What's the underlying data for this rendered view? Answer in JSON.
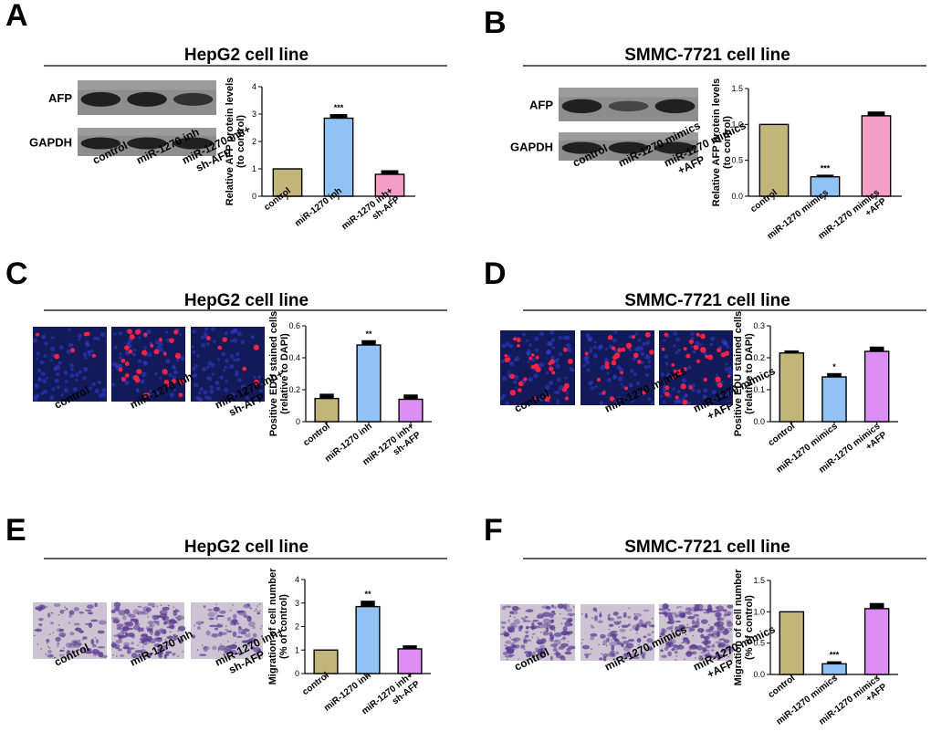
{
  "colors": {
    "olive": "#c2b57a",
    "blue": "#90c3f3",
    "pink": "#f59ec5",
    "violet": "#dd8ef4",
    "dapi": "#131a5a",
    "edu_red": "#ff2244",
    "stain_bg": "#ccc3d3",
    "stain_purple": "#5c3c93"
  },
  "panels": [
    {
      "letter": "A",
      "title": "HepG2 cell line",
      "image_type": "western-blot",
      "blot_labels": [
        "AFP",
        "GAPDH"
      ],
      "afp_intensity": [
        1.0,
        1.0,
        0.75
      ],
      "conditions": [
        "control",
        "miR-1270 inh",
        "miR-1270 inh+ sh-AFP"
      ],
      "condition_lines": [
        [
          "control"
        ],
        [
          "miR-1270 inh"
        ],
        [
          "miR-1270 inh+",
          "sh-AFP"
        ]
      ]
    },
    {
      "letter": "B",
      "title": "SMMC-7721 cell line",
      "image_type": "western-blot",
      "blot_labels": [
        "AFP",
        "GAPDH"
      ],
      "afp_intensity": [
        1.0,
        0.45,
        1.0
      ],
      "conditions": [
        "control",
        "miR-1270 mimics",
        "miR-1270 mimics +AFP"
      ],
      "condition_lines": [
        [
          "control"
        ],
        [
          "miR-1270 mimics"
        ],
        [
          "miR-1270 mimics",
          "+AFP"
        ]
      ]
    },
    {
      "letter": "C",
      "title": "HepG2 cell line",
      "image_type": "edu",
      "conditions": [
        "control",
        "miR-1270 inh",
        "miR-1270 inh+ sh-AFP"
      ],
      "condition_lines": [
        [
          "control"
        ],
        [
          "miR-1270 inh"
        ],
        [
          "miR-1270 inh+",
          "sh-AFP"
        ]
      ],
      "red_cell_counts": [
        6,
        30,
        6
      ]
    },
    {
      "letter": "D",
      "title": "SMMC-7721 cell line",
      "image_type": "edu",
      "conditions": [
        "control",
        "miR-1270 mimics",
        "miR-1270 mimics +AFP"
      ],
      "condition_lines": [
        [
          "control"
        ],
        [
          "miR-1270 mimics"
        ],
        [
          "miR-1270 mimics",
          "+AFP"
        ]
      ],
      "red_cell_counts": [
        30,
        22,
        30
      ]
    },
    {
      "letter": "E",
      "title": "HepG2 cell line",
      "image_type": "transwell",
      "conditions": [
        "control",
        "miR-1270 inh",
        "miR-1270 inh+ sh-AFP"
      ],
      "condition_lines": [
        [
          "control"
        ],
        [
          "miR-1270 inh"
        ],
        [
          "miR-1270 inh+",
          "sh-AFP"
        ]
      ],
      "stain_density": [
        0.25,
        0.75,
        0.3
      ]
    },
    {
      "letter": "F",
      "title": "SMMC-7721 cell line",
      "image_type": "transwell",
      "conditions": [
        "control",
        "miR-1270 mimics",
        "miR-1270 mimics +AFP"
      ],
      "condition_lines": [
        [
          "control"
        ],
        [
          "miR-1270 mimics"
        ],
        [
          "miR-1270 mimics",
          "+AFP"
        ]
      ],
      "stain_density": [
        0.7,
        0.35,
        0.85
      ]
    }
  ],
  "chart_data": [
    {
      "panel": "A",
      "type": "bar",
      "categories": [
        "control",
        "miR-1270 inh",
        "miR-1270 inh+ sh-AFP"
      ],
      "category_lines": [
        [
          "control"
        ],
        [
          "miR-1270 inh"
        ],
        [
          "miR-1270 inh+",
          "sh-AFP"
        ]
      ],
      "values": [
        1.0,
        2.85,
        0.8
      ],
      "errors": [
        0.0,
        0.15,
        0.15
      ],
      "significance": [
        "",
        "***",
        ""
      ],
      "bar_colors": [
        "#c2b57a",
        "#90c3f3",
        "#f59ec5"
      ],
      "ylabel_lines": [
        "Relative AFP protein levels",
        "(to control)"
      ],
      "ylim": [
        0,
        4
      ],
      "yticks": [
        0,
        1,
        2,
        3,
        4
      ],
      "ytick_labels": [
        "0",
        "1",
        "2",
        "3",
        "4"
      ]
    },
    {
      "panel": "B",
      "type": "bar",
      "categories": [
        "control",
        "miR-1270 mimics",
        "miR-1270 mimics +AFP"
      ],
      "category_lines": [
        [
          "control"
        ],
        [
          "miR-1270 mimics"
        ],
        [
          "miR-1270 mimics",
          "+AFP"
        ]
      ],
      "values": [
        1.0,
        0.27,
        1.12
      ],
      "errors": [
        0.0,
        0.03,
        0.06
      ],
      "significance": [
        "",
        "***",
        ""
      ],
      "bar_colors": [
        "#c2b57a",
        "#90c3f3",
        "#f59ec5"
      ],
      "ylabel_lines": [
        "Relative AFP protein levels",
        "(to control)"
      ],
      "ylim": [
        0,
        1.5
      ],
      "yticks": [
        0,
        0.5,
        1.0,
        1.5
      ],
      "ytick_labels": [
        "0.0",
        "0.5",
        "1.0",
        "1.5"
      ]
    },
    {
      "panel": "C",
      "type": "bar",
      "categories": [
        "control",
        "miR-1270 inh",
        "miR-1270 inh+ sh-AFP"
      ],
      "category_lines": [
        [
          "control"
        ],
        [
          "miR-1270 inh"
        ],
        [
          "miR-1270 inh+",
          "sh-AFP"
        ]
      ],
      "values": [
        0.145,
        0.48,
        0.14
      ],
      "errors": [
        0.03,
        0.03,
        0.03
      ],
      "significance": [
        "",
        "**",
        ""
      ],
      "bar_colors": [
        "#c2b57a",
        "#90c3f3",
        "#dd8ef4"
      ],
      "ylabel_lines": [
        "Positive EDU stained cells",
        "(relative to DAPI)"
      ],
      "ylim": [
        0,
        0.6
      ],
      "yticks": [
        0,
        0.2,
        0.4,
        0.6
      ],
      "ytick_labels": [
        "0",
        "0.2",
        "0.4",
        "0.6"
      ]
    },
    {
      "panel": "D",
      "type": "bar",
      "categories": [
        "control",
        "miR-1270 mimics",
        "miR-1270 mimics +AFP"
      ],
      "category_lines": [
        [
          "control"
        ],
        [
          "miR-1270 mimics"
        ],
        [
          "miR-1270 mimics",
          "+AFP"
        ]
      ],
      "values": [
        0.215,
        0.14,
        0.22
      ],
      "errors": [
        0.008,
        0.012,
        0.015
      ],
      "significance": [
        "",
        "*",
        ""
      ],
      "bar_colors": [
        "#c2b57a",
        "#90c3f3",
        "#dd8ef4"
      ],
      "ylabel_lines": [
        "Positive EDU stained cells",
        "(relative to DAPI)"
      ],
      "ylim": [
        0,
        0.3
      ],
      "yticks": [
        0,
        0.1,
        0.2,
        0.3
      ],
      "ytick_labels": [
        "0.0",
        "0.1",
        "0.2",
        "0.3"
      ]
    },
    {
      "panel": "E",
      "type": "bar",
      "categories": [
        "control",
        "miR-1270 inh",
        "miR-1270 inh+ sh-AFP"
      ],
      "category_lines": [
        [
          "control"
        ],
        [
          "miR-1270 inh"
        ],
        [
          "miR-1270 inh+",
          "sh-AFP"
        ]
      ],
      "values": [
        1.0,
        2.85,
        1.05
      ],
      "errors": [
        0.0,
        0.25,
        0.15
      ],
      "significance": [
        "",
        "**",
        ""
      ],
      "bar_colors": [
        "#c2b57a",
        "#90c3f3",
        "#dd8ef4"
      ],
      "ylabel_lines": [
        "Migration of cell number",
        "(% of control)"
      ],
      "ylim": [
        0,
        4
      ],
      "yticks": [
        0,
        1,
        2,
        3,
        4
      ],
      "ytick_labels": [
        "0",
        "1",
        "2",
        "3",
        "4"
      ]
    },
    {
      "panel": "F",
      "type": "bar",
      "categories": [
        "control",
        "miR-1270 mimics",
        "miR-1270 mimics +AFP"
      ],
      "category_lines": [
        [
          "control"
        ],
        [
          "miR-1270 mimics"
        ],
        [
          "miR-1270 mimics",
          "+AFP"
        ]
      ],
      "values": [
        1.0,
        0.17,
        1.05
      ],
      "errors": [
        0.0,
        0.04,
        0.09
      ],
      "significance": [
        "",
        "***",
        ""
      ],
      "bar_colors": [
        "#c2b57a",
        "#90c3f3",
        "#dd8ef4"
      ],
      "ylabel_lines": [
        "Migration of cell number",
        "(% of control)"
      ],
      "ylim": [
        0,
        1.5
      ],
      "yticks": [
        0,
        0.5,
        1.0,
        1.5
      ],
      "ytick_labels": [
        "0.0",
        "0.5",
        "1.0",
        "1.5"
      ]
    }
  ]
}
